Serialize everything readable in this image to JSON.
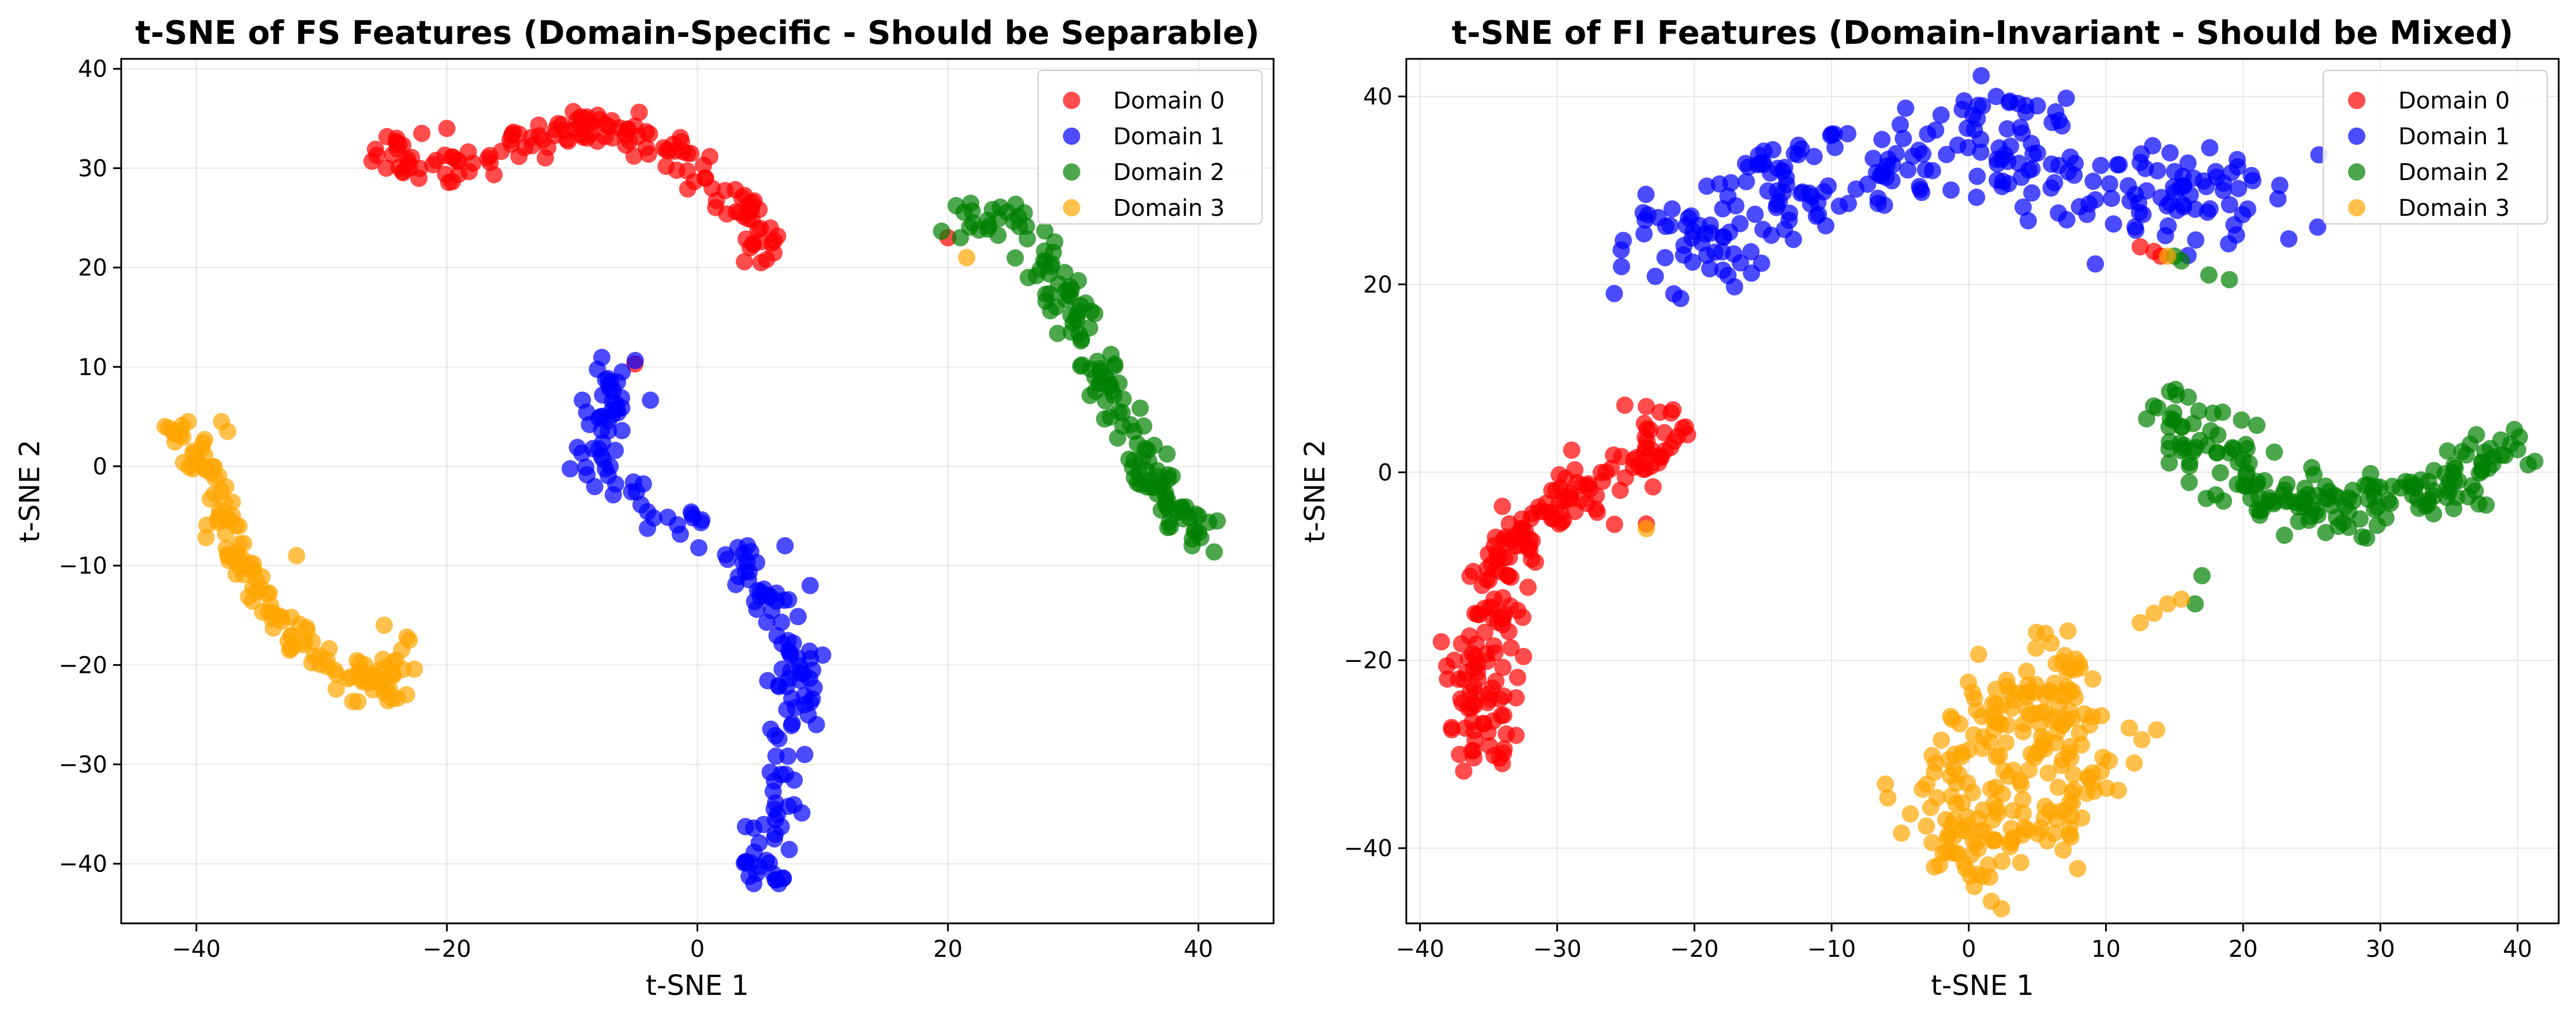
{
  "chart_data": [
    {
      "type": "scatter",
      "title": "t-SNE of FS Features (Domain-Specific - Should be Separable)",
      "xlabel": "t-SNE 1",
      "ylabel": "t-SNE 2",
      "xlim": [
        -46,
        46
      ],
      "ylim": [
        -46,
        41
      ],
      "xticks": [
        -40,
        -20,
        0,
        20,
        40
      ],
      "yticks": [
        -40,
        -30,
        -20,
        -10,
        0,
        10,
        20,
        30,
        40
      ],
      "grid": true,
      "legend_position": "top-right",
      "series": [
        {
          "name": "Domain 0",
          "color": "#ff0000",
          "path": [
            [
              -25.5,
              32
            ],
            [
              -23,
              30
            ],
            [
              -20,
              30.5
            ],
            [
              -17,
              31.5
            ],
            [
              -14,
              32.5
            ],
            [
              -11,
              33.5
            ],
            [
              -8,
              34.5
            ],
            [
              -5.5,
              33.5
            ],
            [
              -3,
              32.5
            ],
            [
              -1,
              31
            ],
            [
              1,
              29
            ],
            [
              3,
              27
            ],
            [
              4.5,
              24
            ],
            [
              5,
              21
            ]
          ],
          "extra": [
            [
              -5,
              10.3
            ],
            [
              -24,
              33
            ],
            [
              -22,
              33.5
            ],
            [
              -20,
              34
            ],
            [
              20,
              23
            ]
          ],
          "n": 150,
          "spread": 1.0
        },
        {
          "name": "Domain 1",
          "color": "#0000ff",
          "path": [
            [
              -5.5,
              9.5
            ],
            [
              -8,
              6
            ],
            [
              -8,
              2
            ],
            [
              -7,
              -1.5
            ],
            [
              -4,
              -3
            ],
            [
              -2,
              -5
            ],
            [
              0,
              -6.5
            ],
            [
              2,
              -8.5
            ],
            [
              4,
              -11
            ],
            [
              6,
              -14
            ],
            [
              7.5,
              -17
            ],
            [
              8,
              -21
            ],
            [
              7.5,
              -25
            ],
            [
              7,
              -29
            ],
            [
              6.5,
              -33
            ],
            [
              6,
              -37
            ],
            [
              5,
              -41.5
            ]
          ],
          "extra": [
            [
              -6,
              9.5
            ],
            [
              4,
              -8
            ],
            [
              7,
              -8
            ],
            [
              9,
              -12
            ],
            [
              10,
              -19
            ],
            [
              9.5,
              -26
            ],
            [
              4.5,
              -42
            ],
            [
              6.5,
              -42
            ]
          ],
          "n": 170,
          "spread": 1.0
        },
        {
          "name": "Domain 2",
          "color": "#008000",
          "path": [
            [
              21,
              24
            ],
            [
              23,
              25.5
            ],
            [
              25,
              25
            ],
            [
              27,
              22
            ],
            [
              29,
              18
            ],
            [
              30.5,
              15
            ],
            [
              32,
              11
            ],
            [
              33,
              8
            ],
            [
              34.5,
              5
            ],
            [
              35.5,
              2
            ],
            [
              36.5,
              -1
            ],
            [
              37.5,
              -4
            ],
            [
              39,
              -6
            ],
            [
              41,
              -7
            ]
          ],
          "extra": [
            [
              21,
              23
            ],
            [
              22,
              24.5
            ],
            [
              40,
              -5
            ],
            [
              41.5,
              -5.5
            ],
            [
              39.5,
              -8
            ]
          ],
          "n": 150,
          "spread": 0.9
        },
        {
          "name": "Domain 3",
          "color": "#ffa500",
          "path": [
            [
              -42,
              5
            ],
            [
              -41,
              3
            ],
            [
              -40,
              1
            ],
            [
              -39,
              -2
            ],
            [
              -38,
              -5
            ],
            [
              -37,
              -8
            ],
            [
              -36,
              -11
            ],
            [
              -35,
              -13
            ],
            [
              -33,
              -15
            ],
            [
              -31,
              -18
            ],
            [
              -29,
              -20.5
            ],
            [
              -27,
              -22
            ],
            [
              -25,
              -22
            ],
            [
              -23.5,
              -19
            ]
          ],
          "extra": [
            [
              -42.5,
              4
            ],
            [
              -38,
              4.5
            ],
            [
              -37.5,
              3.5
            ],
            [
              -32,
              -9
            ],
            [
              -25,
              -16
            ],
            [
              -23,
              -17.5
            ],
            [
              21.5,
              21
            ]
          ],
          "n": 150,
          "spread": 0.9
        }
      ]
    },
    {
      "type": "scatter",
      "title": "t-SNE of FI Features (Domain-Invariant - Should be Mixed)",
      "xlabel": "t-SNE 1",
      "ylabel": "t-SNE 2",
      "xlim": [
        -41,
        43
      ],
      "ylim": [
        -48,
        44
      ],
      "xticks": [
        -40,
        -30,
        -20,
        -10,
        0,
        10,
        20,
        30,
        40
      ],
      "yticks": [
        -40,
        -20,
        0,
        20,
        40
      ],
      "grid": true,
      "legend_position": "top-right",
      "series": [
        {
          "name": "Domain 0",
          "color": "#ff0000",
          "path": [
            [
              -21.5,
              5
            ],
            [
              -23,
              3
            ],
            [
              -25,
              1
            ],
            [
              -27,
              -1.5
            ],
            [
              -29,
              -3.5
            ],
            [
              -31,
              -5
            ],
            [
              -32.5,
              -7
            ],
            [
              -34,
              -10
            ],
            [
              -35,
              -14
            ],
            [
              -35.5,
              -18
            ],
            [
              -36,
              -22
            ],
            [
              -35.5,
              -26
            ],
            [
              -35,
              -30
            ]
          ],
          "extra": [
            [
              -20.5,
              4
            ],
            [
              -23.5,
              7
            ],
            [
              -37.5,
              -20
            ],
            [
              -38,
              -22
            ],
            [
              -33,
              -28
            ],
            [
              -34,
              -31
            ],
            [
              -33,
              -24
            ],
            [
              -23.5,
              -5.5
            ],
            [
              12.5,
              24
            ],
            [
              13.5,
              23.5
            ],
            [
              14,
              23
            ]
          ],
          "n": 200,
          "spread": 1.3
        },
        {
          "name": "Domain 1",
          "color": "#0000ff",
          "path": [
            [
              -22,
              22
            ],
            [
              -20,
              26
            ],
            [
              -17,
              29
            ],
            [
              -13,
              30
            ],
            [
              -9,
              31
            ],
            [
              -5,
              33
            ],
            [
              -1,
              35
            ],
            [
              2,
              37
            ],
            [
              4,
              35
            ],
            [
              7,
              32
            ],
            [
              10,
              30
            ],
            [
              13,
              29
            ],
            [
              16,
              30
            ],
            [
              19,
              29
            ],
            [
              22,
              28
            ]
          ],
          "extra": [
            [
              -21.5,
              19
            ],
            [
              -21,
              18.5
            ],
            [
              -15,
              33
            ],
            [
              -10,
              36
            ],
            [
              -5,
              37
            ],
            [
              -3,
              36
            ],
            [
              1,
              39
            ],
            [
              2,
              40
            ],
            [
              3,
              39.5
            ],
            [
              5,
              39
            ],
            [
              15,
              32
            ],
            [
              18,
              32
            ],
            [
              16.5,
              28
            ]
          ],
          "n": 260,
          "spread": 2.8
        },
        {
          "name": "Domain 2",
          "color": "#008000",
          "path": [
            [
              15,
              7
            ],
            [
              16,
              3
            ],
            [
              18,
              2
            ],
            [
              20,
              -1
            ],
            [
              22,
              -3
            ],
            [
              24,
              -4
            ],
            [
              26,
              -2
            ],
            [
              28,
              -4
            ],
            [
              30,
              -2
            ],
            [
              32,
              -3
            ],
            [
              34,
              -2
            ],
            [
              36,
              -1
            ],
            [
              38,
              1
            ],
            [
              40,
              3.5
            ]
          ],
          "extra": [
            [
              15,
              23
            ],
            [
              15.5,
              22.5
            ],
            [
              17.5,
              21
            ],
            [
              19,
              20.5
            ],
            [
              16,
              8
            ],
            [
              21,
              5
            ],
            [
              29,
              -7
            ],
            [
              17,
              -11
            ],
            [
              16.5,
              -14
            ],
            [
              39.5,
              3
            ],
            [
              37,
              4
            ],
            [
              25,
              0.5
            ]
          ],
          "n": 180,
          "spread": 1.5
        },
        {
          "name": "Domain 3",
          "color": "#ffa500",
          "path": [
            [
              7,
              -21
            ],
            [
              5,
              -24
            ],
            [
              3,
              -27
            ],
            [
              0,
              -30
            ],
            [
              -1,
              -34
            ],
            [
              -1,
              -38
            ],
            [
              1,
              -41
            ],
            [
              4,
              -40
            ],
            [
              6,
              -36
            ],
            [
              7,
              -31
            ],
            [
              8,
              -28
            ],
            [
              6,
              -25
            ],
            [
              4,
              -22
            ]
          ],
          "extra": [
            [
              -2,
              -28.5
            ],
            [
              9,
              -32
            ],
            [
              7,
              -19.5
            ],
            [
              -2.5,
              -42
            ],
            [
              1,
              -43
            ],
            [
              12.5,
              -16
            ],
            [
              13.5,
              -15
            ],
            [
              14.5,
              -14
            ],
            [
              15.5,
              -13.5
            ],
            [
              14.5,
              23
            ],
            [
              -23.5,
              -6
            ]
          ],
          "n": 230,
          "spread": 2.4
        }
      ]
    }
  ]
}
